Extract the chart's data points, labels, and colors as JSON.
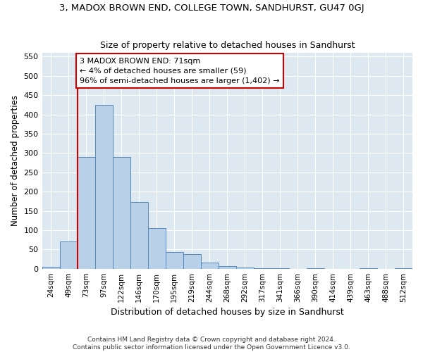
{
  "title": "3, MADOX BROWN END, COLLEGE TOWN, SANDHURST, GU47 0GJ",
  "subtitle": "Size of property relative to detached houses in Sandhurst",
  "xlabel": "Distribution of detached houses by size in Sandhurst",
  "ylabel": "Number of detached properties",
  "categories": [
    "24sqm",
    "49sqm",
    "73sqm",
    "97sqm",
    "122sqm",
    "146sqm",
    "170sqm",
    "195sqm",
    "219sqm",
    "244sqm",
    "268sqm",
    "292sqm",
    "317sqm",
    "341sqm",
    "366sqm",
    "390sqm",
    "414sqm",
    "439sqm",
    "463sqm",
    "488sqm",
    "512sqm"
  ],
  "values": [
    5,
    70,
    290,
    425,
    290,
    172,
    105,
    43,
    38,
    15,
    7,
    3,
    2,
    1,
    0,
    2,
    0,
    0,
    1,
    0,
    1
  ],
  "bar_color": "#b8d0e8",
  "bar_edge_color": "#5588bb",
  "vline_x_index": 2,
  "vline_color": "#cc0000",
  "annotation_line1": "3 MADOX BROWN END: 71sqm",
  "annotation_line2": "← 4% of detached houses are smaller (59)",
  "annotation_line3": "96% of semi-detached houses are larger (1,402) →",
  "annotation_box_facecolor": "#ffffff",
  "annotation_box_edgecolor": "#cc0000",
  "ylim": [
    0,
    560
  ],
  "yticks": [
    0,
    50,
    100,
    150,
    200,
    250,
    300,
    350,
    400,
    450,
    500,
    550
  ],
  "plot_bg_color": "#dde8f0",
  "grid_color": "#ffffff",
  "footer_line1": "Contains HM Land Registry data © Crown copyright and database right 2024.",
  "footer_line2": "Contains public sector information licensed under the Open Government Licence v3.0."
}
